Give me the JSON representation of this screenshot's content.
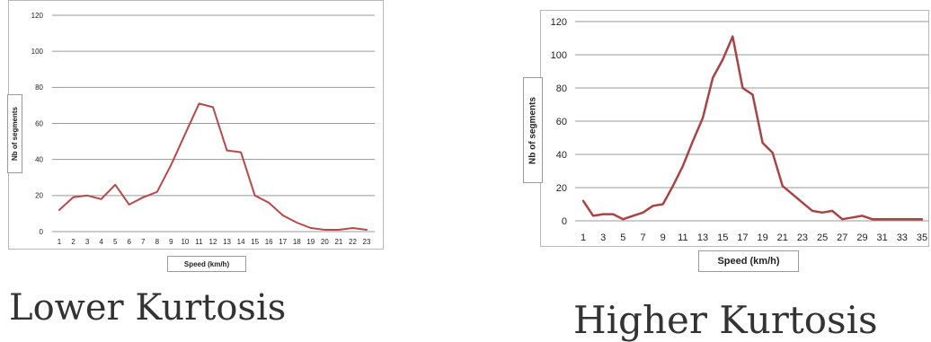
{
  "chart_data": [
    {
      "type": "line",
      "title": "",
      "xlabel": "Speed (km/h)",
      "ylabel": "Nb of segments",
      "x": [
        1,
        2,
        3,
        4,
        5,
        6,
        7,
        8,
        9,
        10,
        11,
        12,
        13,
        14,
        15,
        16,
        17,
        18,
        19,
        20,
        21,
        22,
        23
      ],
      "series": [
        {
          "values": [
            12,
            19,
            20,
            18,
            26,
            15,
            19,
            22,
            37,
            54,
            71,
            69,
            45,
            44,
            20,
            16,
            9,
            5,
            2,
            1,
            1,
            2,
            1
          ]
        }
      ],
      "ylim": [
        0,
        120
      ],
      "yticks": [
        0,
        20,
        40,
        60,
        80,
        100,
        120
      ],
      "xticks": [
        1,
        2,
        3,
        4,
        5,
        6,
        7,
        8,
        9,
        10,
        11,
        12,
        13,
        14,
        15,
        16,
        17,
        18,
        19,
        20,
        21,
        22,
        23
      ],
      "grid": true,
      "color": "#b5494b"
    },
    {
      "type": "line",
      "title": "",
      "xlabel": "Speed (km/h)",
      "ylabel": "Nb of segments",
      "x": [
        1,
        2,
        3,
        4,
        5,
        6,
        7,
        8,
        9,
        10,
        11,
        12,
        13,
        14,
        15,
        16,
        17,
        18,
        19,
        20,
        21,
        22,
        23,
        24,
        25,
        26,
        27,
        28,
        29,
        30,
        31,
        32,
        33,
        34,
        35
      ],
      "series": [
        {
          "values": [
            12,
            3,
            4,
            4,
            1,
            3,
            5,
            9,
            10,
            21,
            33,
            48,
            62,
            86,
            97,
            111,
            80,
            76,
            47,
            41,
            21,
            16,
            11,
            6,
            5,
            6,
            1,
            2,
            3,
            1,
            1,
            1,
            1,
            1,
            1
          ]
        }
      ],
      "ylim": [
        0,
        120
      ],
      "yticks": [
        0,
        20,
        40,
        60,
        80,
        100,
        120
      ],
      "xticks": [
        1,
        3,
        5,
        7,
        9,
        11,
        13,
        15,
        17,
        19,
        21,
        23,
        25,
        27,
        29,
        31,
        33,
        35
      ],
      "grid": true,
      "color": "#a84446"
    }
  ],
  "captions": {
    "left": "Lower Kurtosis",
    "right": "Higher Kurtosis"
  }
}
